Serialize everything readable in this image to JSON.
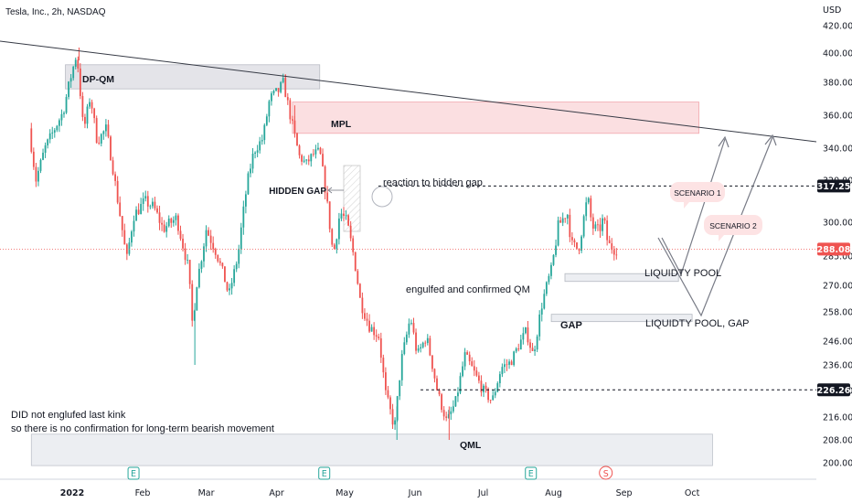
{
  "header": {
    "title": "Tesla, Inc., 2h, NASDAQ",
    "currency": "USD"
  },
  "chart_data": {
    "type": "candlestick",
    "symbol": "Tesla, Inc.",
    "interval": "2h",
    "exchange": "NASDAQ",
    "currency": "USD",
    "ylim": [
      195,
      425
    ],
    "y_ticks": [
      420,
      400,
      380,
      360,
      340,
      320,
      300,
      285,
      270,
      258,
      246,
      236,
      226,
      216,
      208,
      200
    ],
    "x_ticks": [
      "2022",
      "Feb",
      "Mar",
      "Apr",
      "May",
      "Jun",
      "Jul",
      "Aug",
      "Sep",
      "Oct"
    ],
    "price_badges": [
      {
        "value": "317.25",
        "kind": "level"
      },
      {
        "value": "288.08",
        "kind": "last"
      },
      {
        "value": "226.26",
        "kind": "level"
      }
    ],
    "horizontal_levels": [
      317.25,
      226.26
    ],
    "last_price": 288.08,
    "path_keypoints": [
      {
        "date": "2021-12-14",
        "price": 352
      },
      {
        "date": "2021-12-17",
        "price": 320
      },
      {
        "date": "2021-12-21",
        "price": 340
      },
      {
        "date": "2021-12-29",
        "price": 362
      },
      {
        "date": "2022-01-04",
        "price": 400
      },
      {
        "date": "2022-01-07",
        "price": 350
      },
      {
        "date": "2022-01-10",
        "price": 372
      },
      {
        "date": "2022-01-13",
        "price": 344
      },
      {
        "date": "2022-01-17",
        "price": 352
      },
      {
        "date": "2022-01-21",
        "price": 318
      },
      {
        "date": "2022-01-26",
        "price": 283
      },
      {
        "date": "2022-01-29",
        "price": 303
      },
      {
        "date": "2022-02-03",
        "price": 310
      },
      {
        "date": "2022-02-07",
        "price": 307
      },
      {
        "date": "2022-02-11",
        "price": 297
      },
      {
        "date": "2022-02-17",
        "price": 302
      },
      {
        "date": "2022-02-22",
        "price": 280
      },
      {
        "date": "2022-02-24",
        "price": 252
      },
      {
        "date": "2022-02-26",
        "price": 272
      },
      {
        "date": "2022-03-02",
        "price": 297
      },
      {
        "date": "2022-03-06",
        "price": 288
      },
      {
        "date": "2022-03-09",
        "price": 278
      },
      {
        "date": "2022-03-12",
        "price": 265
      },
      {
        "date": "2022-03-16",
        "price": 285
      },
      {
        "date": "2022-03-20",
        "price": 318
      },
      {
        "date": "2022-03-23",
        "price": 338
      },
      {
        "date": "2022-03-27",
        "price": 346
      },
      {
        "date": "2022-03-30",
        "price": 370
      },
      {
        "date": "2022-04-03",
        "price": 375
      },
      {
        "date": "2022-04-05",
        "price": 380
      },
      {
        "date": "2022-04-08",
        "price": 360
      },
      {
        "date": "2022-04-12",
        "price": 335
      },
      {
        "date": "2022-04-15",
        "price": 330
      },
      {
        "date": "2022-04-18",
        "price": 336
      },
      {
        "date": "2022-04-21",
        "price": 338
      },
      {
        "date": "2022-04-23",
        "price": 320
      },
      {
        "date": "2022-04-27",
        "price": 285
      },
      {
        "date": "2022-04-30",
        "price": 305
      },
      {
        "date": "2022-05-03",
        "price": 300
      },
      {
        "date": "2022-05-06",
        "price": 285
      },
      {
        "date": "2022-05-09",
        "price": 262
      },
      {
        "date": "2022-05-13",
        "price": 252
      },
      {
        "date": "2022-05-17",
        "price": 248
      },
      {
        "date": "2022-05-20",
        "price": 225
      },
      {
        "date": "2022-05-24",
        "price": 212
      },
      {
        "date": "2022-05-27",
        "price": 238
      },
      {
        "date": "2022-05-31",
        "price": 256
      },
      {
        "date": "2022-06-03",
        "price": 240
      },
      {
        "date": "2022-06-07",
        "price": 248
      },
      {
        "date": "2022-06-12",
        "price": 225
      },
      {
        "date": "2022-06-16",
        "price": 214
      },
      {
        "date": "2022-06-20",
        "price": 222
      },
      {
        "date": "2022-06-24",
        "price": 240
      },
      {
        "date": "2022-06-28",
        "price": 233
      },
      {
        "date": "2022-07-02",
        "price": 226
      },
      {
        "date": "2022-07-06",
        "price": 222
      },
      {
        "date": "2022-07-10",
        "price": 235
      },
      {
        "date": "2022-07-14",
        "price": 237
      },
      {
        "date": "2022-07-18",
        "price": 245
      },
      {
        "date": "2022-07-21",
        "price": 250
      },
      {
        "date": "2022-07-24",
        "price": 240
      },
      {
        "date": "2022-07-28",
        "price": 262
      },
      {
        "date": "2022-08-01",
        "price": 278
      },
      {
        "date": "2022-08-04",
        "price": 298
      },
      {
        "date": "2022-08-08",
        "price": 305
      },
      {
        "date": "2022-08-10",
        "price": 290
      },
      {
        "date": "2022-08-13",
        "price": 288
      },
      {
        "date": "2022-08-17",
        "price": 312
      },
      {
        "date": "2022-08-19",
        "price": 298
      },
      {
        "date": "2022-08-22",
        "price": 296
      },
      {
        "date": "2022-08-24",
        "price": 302
      },
      {
        "date": "2022-08-26",
        "price": 290
      },
      {
        "date": "2022-08-29",
        "price": 288
      }
    ],
    "annotations": [
      {
        "id": "dp_qm",
        "text": "DP-QM",
        "zone": {
          "start": "2021-12-29",
          "end": "2022-04-20",
          "top": 392,
          "bottom": 376
        }
      },
      {
        "id": "mpl",
        "text": "MPL",
        "zone": {
          "start": "2022-04-08",
          "end": "2022-10-04",
          "top": 368,
          "bottom": 349
        }
      },
      {
        "id": "hidden_gap",
        "text": "HIDDEN GAP"
      },
      {
        "id": "reaction",
        "text": "reaction to hidden gap"
      },
      {
        "id": "scenario1",
        "text": "SCENARIO 1"
      },
      {
        "id": "scenario2",
        "text": "SCENARIO 2"
      },
      {
        "id": "liq_pool",
        "text": "LIQUIDTY POOL",
        "zone": {
          "start": "2022-08-06",
          "end": "2022-09-25",
          "top": 276,
          "bottom": 272
        }
      },
      {
        "id": "liq_gap",
        "text": "LIQUIDTY POOL, GAP",
        "zone": {
          "start": "2022-07-31",
          "end": "2022-10-01",
          "top": 257,
          "bottom": 254
        }
      },
      {
        "id": "gap",
        "text": "GAP"
      },
      {
        "id": "engulfed",
        "text": "engulfed and confirmed QM"
      },
      {
        "id": "qml",
        "text": "QML",
        "zone": {
          "start": "2021-12-14",
          "end": "2022-10-10",
          "top": 210,
          "bottom": 199
        }
      },
      {
        "id": "note1",
        "text": "DID not englufed last kink"
      },
      {
        "id": "note2",
        "text": "so there is no confirmation for long-term bearish movement"
      }
    ],
    "earnings_markers": [
      "E",
      "E",
      "E"
    ],
    "split_marker": "S"
  }
}
